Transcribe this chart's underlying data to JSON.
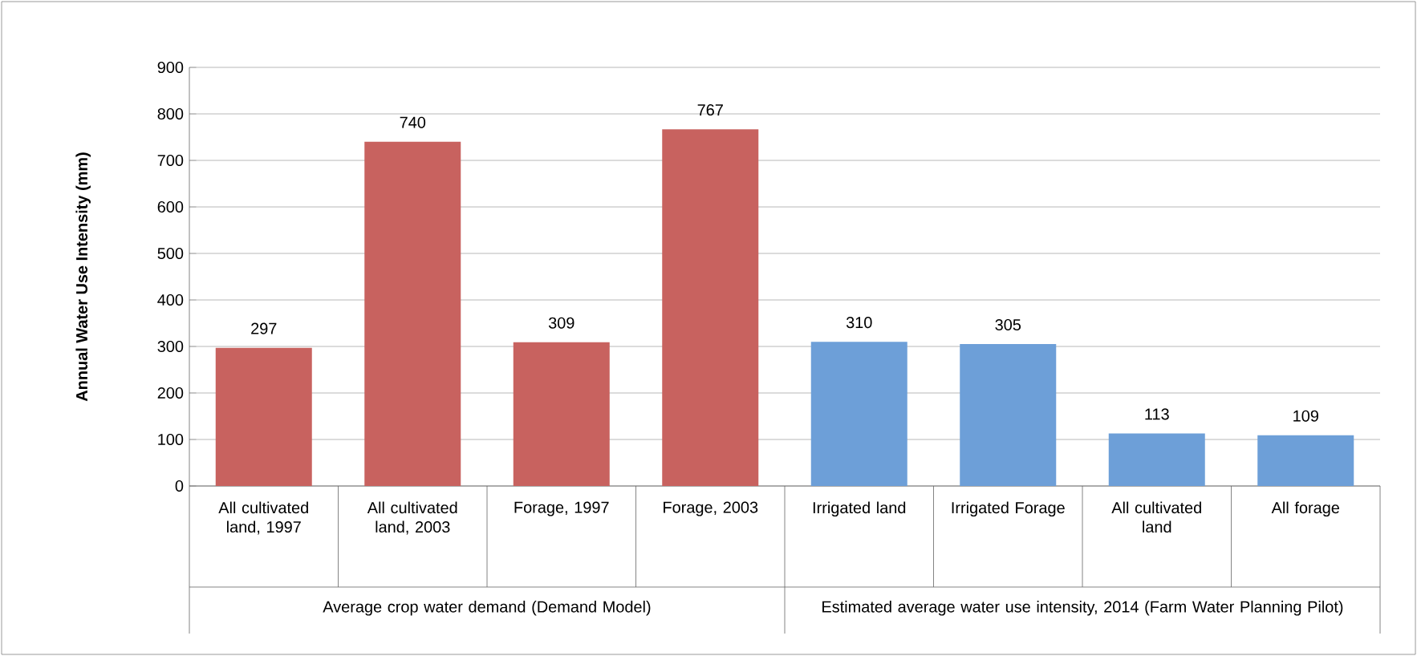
{
  "chart_data": {
    "type": "bar",
    "ylabel": "Annual Water Use Intensity (mm)",
    "categories": [
      "All cultivated land, 1997",
      "All cultivated land, 2003",
      "Forage, 1997",
      "Forage, 2003",
      "Irrigated land",
      "Irrigated Forage",
      "All cultivated land",
      "All forage"
    ],
    "values": [
      297,
      740,
      309,
      767,
      310,
      305,
      113,
      109
    ],
    "colors": [
      "#c8625f",
      "#c8625f",
      "#c8625f",
      "#c8625f",
      "#6d9fd8",
      "#6d9fd8",
      "#6d9fd8",
      "#6d9fd8"
    ],
    "ylim": [
      0,
      900
    ],
    "yticks": [
      0,
      100,
      200,
      300,
      400,
      500,
      600,
      700,
      800,
      900
    ],
    "grid": "y",
    "data_labels": true,
    "annotations": [
      "Average crop water demand (Demand Model)",
      "Estimated average water use intensity, 2014 (Farm Water Planning Pilot)"
    ]
  }
}
